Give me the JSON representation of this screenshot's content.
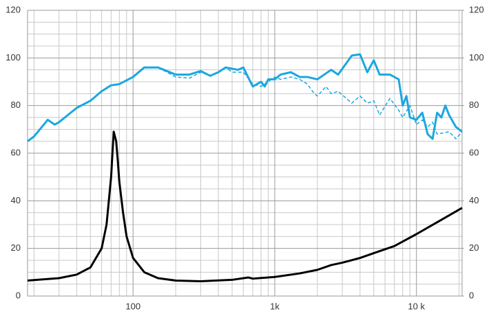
{
  "chart_data": {
    "type": "line",
    "xscale": "log",
    "xlim": [
      18,
      21000
    ],
    "ylim": [
      0,
      120
    ],
    "y2lim": [
      0,
      120
    ],
    "xticks": [
      {
        "value": 100,
        "label": "100"
      },
      {
        "value": 1000,
        "label": "1k"
      },
      {
        "value": 10000,
        "label": "10 k"
      }
    ],
    "x_minor_ticks": [
      20,
      30,
      40,
      50,
      60,
      70,
      80,
      90,
      200,
      300,
      400,
      500,
      600,
      700,
      800,
      900,
      2000,
      3000,
      4000,
      5000,
      6000,
      7000,
      8000,
      9000,
      20000
    ],
    "yticks": [
      0,
      20,
      40,
      60,
      80,
      100,
      120
    ],
    "y2ticks": [
      0,
      20,
      40,
      60,
      80,
      100,
      120
    ],
    "y_minor_ticks": [
      5,
      10,
      15,
      25,
      30,
      35,
      45,
      50,
      55,
      65,
      70,
      75,
      85,
      90,
      95,
      105,
      110,
      115
    ],
    "grid": true,
    "series": [
      {
        "color": "#1aa7e0",
        "dash": false,
        "width": 3,
        "x": [
          18,
          20,
          25,
          28,
          30,
          40,
          50,
          60,
          70,
          80,
          100,
          120,
          150,
          200,
          250,
          300,
          350,
          400,
          450,
          550,
          600,
          700,
          750,
          800,
          850,
          900,
          1000,
          1100,
          1300,
          1500,
          1700,
          2000,
          2500,
          2800,
          3500,
          4000,
          4500,
          5000,
          5500,
          6500,
          7500,
          8000,
          8500,
          9000,
          10000,
          11000,
          12000,
          13000,
          14000,
          15000,
          16000,
          17000,
          19000,
          21000
        ],
        "values": [
          65,
          67,
          74,
          72,
          73,
          79,
          82,
          86,
          88.5,
          89,
          92,
          96,
          96,
          93,
          93,
          94.5,
          92.5,
          94,
          96,
          95,
          96,
          88,
          89,
          90,
          88,
          91,
          91,
          93,
          94,
          92,
          92,
          91,
          95,
          93,
          101,
          101.5,
          94,
          99,
          93,
          93,
          91,
          80,
          84,
          75,
          74,
          77,
          68,
          66,
          77,
          75,
          80,
          76,
          71,
          69
        ]
      },
      {
        "color": "#1aa7e0",
        "dash": true,
        "width": 1.5,
        "x": [
          18,
          20,
          25,
          28,
          30,
          40,
          50,
          60,
          70,
          80,
          100,
          120,
          150,
          200,
          250,
          300,
          350,
          400,
          450,
          500,
          600,
          700,
          800,
          900,
          1000,
          1100,
          1300,
          1500,
          1700,
          1900,
          2000,
          2300,
          2500,
          2800,
          3500,
          4000,
          4500,
          5000,
          5500,
          6500,
          7500,
          8000,
          9000,
          10000,
          11000,
          12000,
          13000,
          14000,
          17000,
          19000,
          21000
        ],
        "values": [
          65,
          67,
          74,
          72,
          73,
          79,
          82,
          86,
          88.5,
          89,
          92,
          96,
          96,
          92,
          91.5,
          94,
          92.5,
          94,
          96,
          94,
          94,
          89,
          88,
          90,
          92,
          91,
          92,
          91,
          89,
          85,
          84,
          88,
          85,
          86,
          81,
          84,
          81,
          82,
          76,
          83,
          78,
          75,
          80,
          72,
          74,
          71,
          73,
          68,
          69,
          66,
          69
        ]
      },
      {
        "color": "#000000",
        "dash": false,
        "width": 3,
        "x": [
          18,
          20,
          30,
          40,
          50,
          60,
          65,
          70,
          73,
          76,
          78,
          80,
          85,
          90,
          100,
          120,
          150,
          200,
          300,
          500,
          650,
          700,
          1000,
          1500,
          2000,
          2500,
          3000,
          4000,
          5000,
          7000,
          10000,
          15000,
          21000
        ],
        "values": [
          6.5,
          6.7,
          7.5,
          9,
          12,
          20,
          30,
          50,
          69,
          65,
          57,
          48,
          35,
          25,
          16,
          10,
          7.5,
          6.5,
          6.2,
          6.8,
          7.8,
          7.3,
          8,
          9.5,
          11,
          13,
          14,
          16,
          18,
          21,
          26,
          32,
          37
        ]
      }
    ]
  }
}
